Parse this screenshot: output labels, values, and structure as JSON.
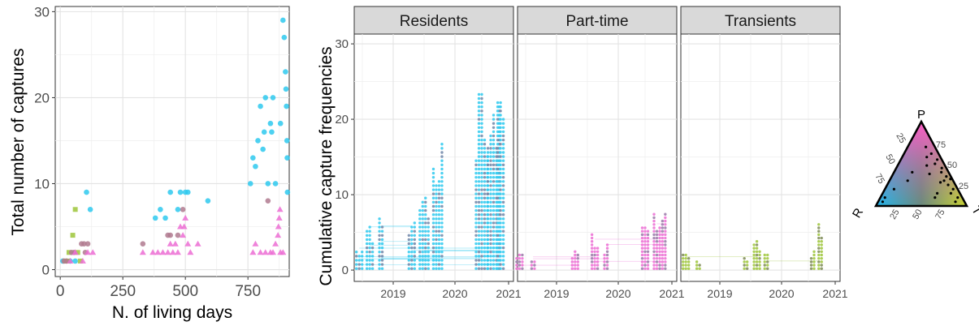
{
  "chart_data": [
    {
      "type": "scatter",
      "xlabel": "N. of living days",
      "ylabel": "Total number of captures",
      "xlim": [
        -20,
        915
      ],
      "ylim": [
        0,
        30
      ],
      "xticks": [
        "0",
        "250",
        "500",
        "750"
      ],
      "yticks": [
        "0",
        "10",
        "20",
        "30"
      ],
      "grid": true,
      "series": [
        {
          "shape": "circle",
          "color": "#2ec9ef",
          "points": [
            [
              10,
              1
            ],
            [
              40,
              1
            ],
            [
              60,
              1
            ],
            [
              105,
              9
            ],
            [
              120,
              7
            ],
            [
              380,
              6
            ],
            [
              400,
              7
            ],
            [
              420,
              6
            ],
            [
              440,
              9
            ],
            [
              470,
              7
            ],
            [
              480,
              9
            ],
            [
              500,
              9
            ],
            [
              510,
              9
            ],
            [
              590,
              8
            ],
            [
              760,
              10
            ],
            [
              770,
              13
            ],
            [
              780,
              12
            ],
            [
              790,
              15
            ],
            [
              800,
              19
            ],
            [
              810,
              14
            ],
            [
              815,
              16
            ],
            [
              820,
              20
            ],
            [
              830,
              10
            ],
            [
              840,
              17
            ],
            [
              845,
              16
            ],
            [
              850,
              20
            ],
            [
              860,
              10
            ],
            [
              880,
              17
            ],
            [
              890,
              29
            ],
            [
              895,
              27
            ],
            [
              900,
              23
            ],
            [
              902,
              21
            ],
            [
              904,
              19
            ],
            [
              906,
              15
            ],
            [
              907,
              13
            ],
            [
              908,
              9
            ]
          ]
        },
        {
          "shape": "square",
          "color": "#9ec53a",
          "points": [
            [
              20,
              1
            ],
            [
              30,
              1
            ],
            [
              35,
              2
            ],
            [
              50,
              4
            ],
            [
              60,
              7
            ],
            [
              70,
              2
            ],
            [
              80,
              1
            ]
          ]
        },
        {
          "shape": "circle",
          "color": "#b07a8f",
          "points": [
            [
              15,
              1
            ],
            [
              25,
              1
            ],
            [
              45,
              2
            ],
            [
              55,
              2
            ],
            [
              85,
              3
            ],
            [
              95,
              3
            ],
            [
              100,
              2
            ],
            [
              110,
              3
            ],
            [
              330,
              3
            ],
            [
              430,
              4
            ],
            [
              440,
              4
            ],
            [
              470,
              4
            ],
            [
              490,
              7
            ],
            [
              830,
              8
            ]
          ]
        },
        {
          "shape": "triangle",
          "color": "#ec6dd4",
          "points": [
            [
              40,
              1
            ],
            [
              60,
              2
            ],
            [
              90,
              1
            ],
            [
              110,
              2
            ],
            [
              130,
              2
            ],
            [
              330,
              2
            ],
            [
              370,
              2
            ],
            [
              390,
              2
            ],
            [
              410,
              2
            ],
            [
              430,
              2
            ],
            [
              440,
              3
            ],
            [
              450,
              2
            ],
            [
              460,
              3
            ],
            [
              470,
              2
            ],
            [
              480,
              5
            ],
            [
              490,
              4
            ],
            [
              495,
              5
            ],
            [
              500,
              6
            ],
            [
              510,
              3
            ],
            [
              520,
              2
            ],
            [
              550,
              3
            ],
            [
              770,
              2
            ],
            [
              780,
              3
            ],
            [
              800,
              2
            ],
            [
              820,
              2
            ],
            [
              840,
              2
            ],
            [
              850,
              2
            ],
            [
              860,
              3
            ],
            [
              870,
              4
            ],
            [
              872,
              5
            ],
            [
              875,
              6
            ],
            [
              878,
              7
            ],
            [
              880,
              2
            ],
            [
              890,
              2
            ]
          ]
        }
      ]
    },
    {
      "type": "scatter",
      "ylabel": "Cumulative capture frequencies",
      "ylim": [
        0,
        30
      ],
      "yticks": [
        "0",
        "10",
        "20",
        "30"
      ],
      "xticks": [
        "2019",
        "2020",
        "2021"
      ],
      "x_domain": [
        "2018-05",
        "2021-01"
      ],
      "panels": [
        {
          "title": "Residents",
          "color": "#2ec9ef"
        },
        {
          "title": "Part-time",
          "color": "#ec6dd4"
        },
        {
          "title": "Transients",
          "color": "#9ec53a"
        }
      ]
    },
    {
      "type": "ternary-legend",
      "vertices": [
        "P",
        "R",
        "T"
      ],
      "ticks": [
        "25",
        "50",
        "75"
      ]
    }
  ]
}
